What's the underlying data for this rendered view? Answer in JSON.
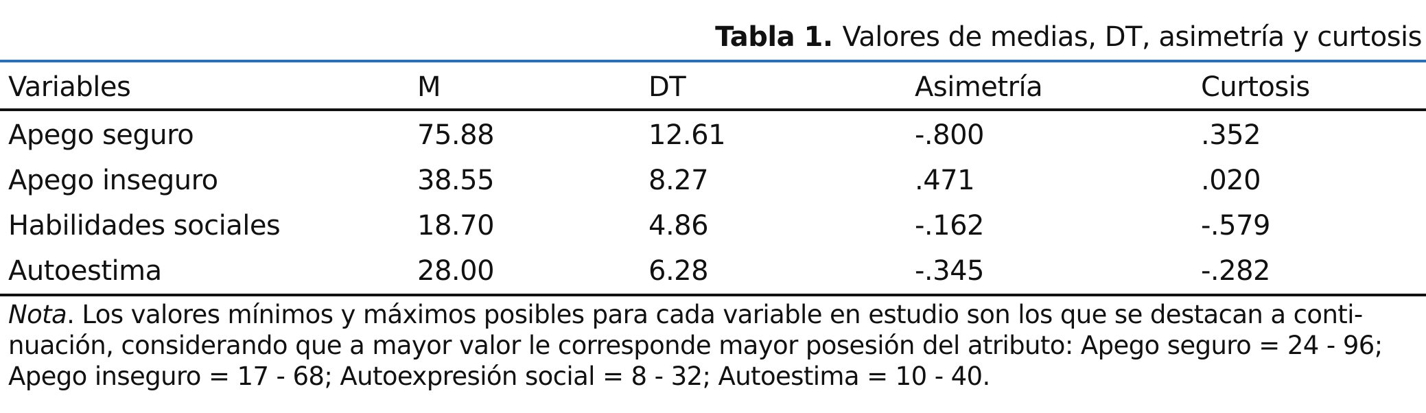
{
  "caption": {
    "label": "Tabla 1.",
    "title": "Valores de medias, DT, asimetría y curtosis"
  },
  "table": {
    "headers": [
      "Variables",
      "M",
      "DT",
      "Asimetría",
      "Curtosis"
    ],
    "rows": [
      [
        "Apego seguro",
        "75.88",
        "12.61",
        "-.800",
        ".352"
      ],
      [
        "Apego inseguro",
        "38.55",
        "8.27",
        ".471",
        ".020"
      ],
      [
        "Habilidades sociales",
        "18.70",
        "4.86",
        "-.162",
        "-.579"
      ],
      [
        "Autoestima",
        "28.00",
        "6.28",
        "-.345",
        "-.282"
      ]
    ]
  },
  "note": {
    "label": "Nota",
    "line1": ". Los valores mínimos y máximos posibles para cada variable en estudio son los que se destacan a conti-",
    "line2": "nuación, considerando que a mayor valor le corresponde mayor posesión del atributo: Apego seguro = 24 - 96;",
    "line3": "Apego inseguro = 17 - 68; Autoexpresión social = 8 - 32; Autoestima = 10 - 40."
  },
  "colors": {
    "top_rule": "#2f6fb3",
    "rules": "#111111",
    "text": "#111111"
  }
}
